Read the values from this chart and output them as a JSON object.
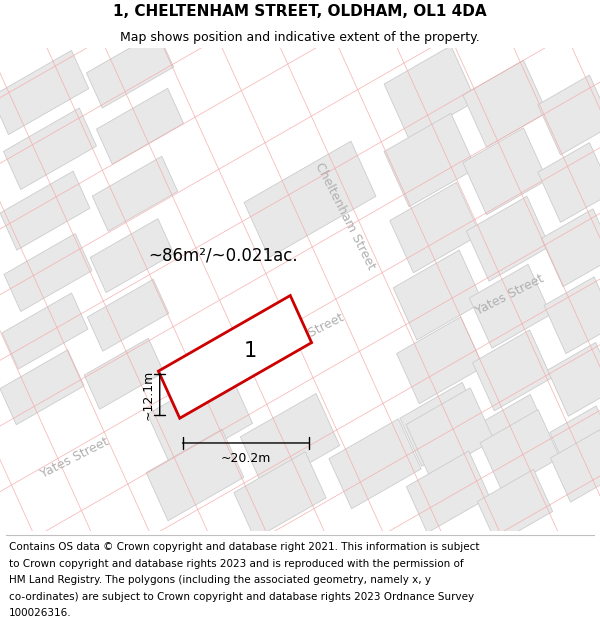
{
  "title": "1, CHELTENHAM STREET, OLDHAM, OL1 4DA",
  "subtitle": "Map shows position and indicative extent of the property.",
  "footer_lines": [
    "Contains OS data © Crown copyright and database right 2021. This information is subject",
    "to Crown copyright and database rights 2023 and is reproduced with the permission of",
    "HM Land Registry. The polygons (including the associated geometry, namely x, y",
    "co-ordinates) are subject to Crown copyright and database rights 2023 Ordnance Survey",
    "100026316."
  ],
  "map_bg": "#f7f7f7",
  "block_fill": "#e8e8e8",
  "block_edge": "#cccccc",
  "road_color": "#ffffff",
  "pink_color": "#f5aaaa",
  "plot_edge": "#cc0000",
  "plot_fill": "#ffffff",
  "plot_label": "1",
  "area_label": "~86m²/~0.021ac.",
  "dim_width": "~20.2m",
  "dim_height": "~12.1m",
  "street_color": "#b0b0b0",
  "title_fontsize": 11,
  "subtitle_fontsize": 9,
  "footer_fontsize": 7.5,
  "blk_ang": 27,
  "map_xlim": [
    0,
    600
  ],
  "map_ylim": [
    0,
    430
  ]
}
